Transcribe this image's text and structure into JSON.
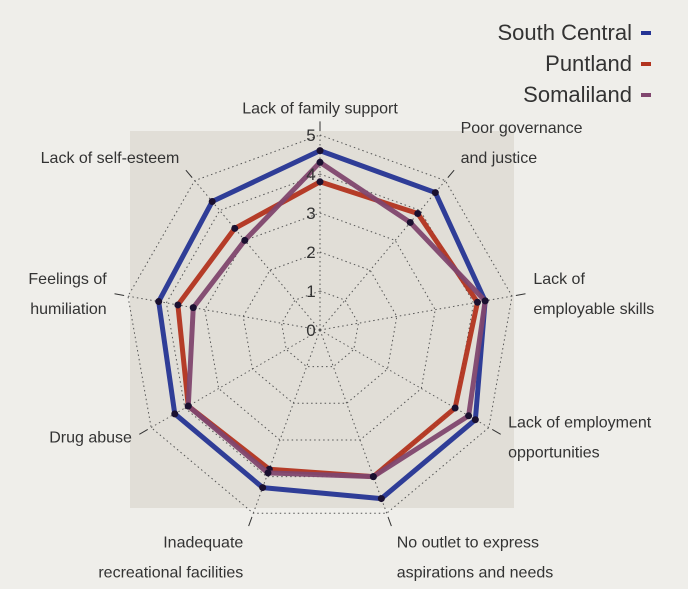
{
  "chart_data": {
    "type": "radar",
    "title": "",
    "categories": [
      "Lack of family support",
      "Poor governance and justice",
      "Lack of employable skills",
      "Lack of employment opportunities",
      "No outlet to express aspirations and needs",
      "Inadequate recreational facilities",
      "Drug abuse",
      "Feelings of humiliation",
      "Lack of self-esteem"
    ],
    "category_label_lines": [
      [
        "Lack of family support"
      ],
      [
        "Poor governance",
        "and justice"
      ],
      [
        "Lack of",
        "employable skills"
      ],
      [
        "Lack of employment",
        "opportunities"
      ],
      [
        "No outlet to express",
        "aspirations and needs"
      ],
      [
        "Inadequate",
        "recreational facilities"
      ],
      [
        "Drug abuse"
      ],
      [
        "Feelings of",
        "humiliation"
      ],
      [
        "Lack of self-esteem"
      ]
    ],
    "ticks": [
      0,
      1,
      2,
      3,
      4,
      5
    ],
    "rlim": [
      0,
      5
    ],
    "grid": true,
    "legend_position": "top-right",
    "series": [
      {
        "name": "South Central",
        "color": "#253494",
        "values": [
          4.6,
          4.6,
          4.3,
          4.6,
          4.6,
          4.3,
          4.3,
          4.2,
          4.3
        ]
      },
      {
        "name": "Puntland",
        "color": "#b2331f",
        "values": [
          3.8,
          3.9,
          4.1,
          4.0,
          4.0,
          3.8,
          3.9,
          3.7,
          3.4
        ]
      },
      {
        "name": "Somaliland",
        "color": "#80466e",
        "values": [
          4.3,
          3.6,
          4.3,
          4.4,
          4.0,
          3.9,
          3.9,
          3.3,
          3.0
        ]
      }
    ]
  },
  "colors": {
    "background": "#efeeea",
    "plot_area": "#e1ded7"
  }
}
